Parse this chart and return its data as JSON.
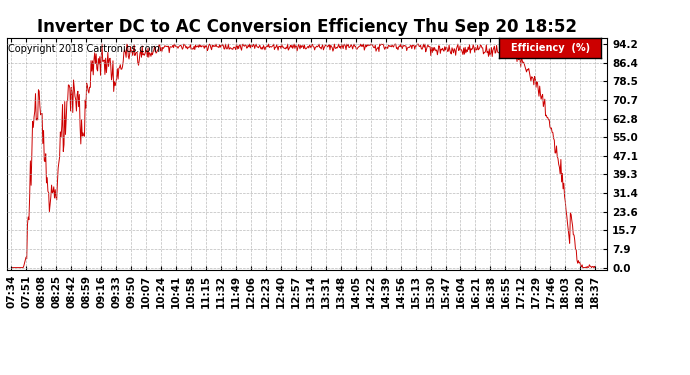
{
  "title": "Inverter DC to AC Conversion Efficiency Thu Sep 20 18:52",
  "copyright": "Copyright 2018 Cartronics.com",
  "legend_label": "Efficiency  (%)",
  "legend_bg": "#cc0000",
  "legend_text_color": "#ffffff",
  "line_color": "#cc0000",
  "bg_color": "#ffffff",
  "plot_bg_color": "#ffffff",
  "grid_color": "#aaaaaa",
  "ytick_labels": [
    "0.0",
    "7.9",
    "15.7",
    "23.6",
    "31.4",
    "39.3",
    "47.1",
    "55.0",
    "62.8",
    "70.7",
    "78.5",
    "86.4",
    "94.2"
  ],
  "ytick_values": [
    0.0,
    7.9,
    15.7,
    23.6,
    31.4,
    39.3,
    47.1,
    55.0,
    62.8,
    70.7,
    78.5,
    86.4,
    94.2
  ],
  "xtick_labels": [
    "07:34",
    "07:51",
    "08:08",
    "08:25",
    "08:42",
    "08:59",
    "09:16",
    "09:33",
    "09:50",
    "10:07",
    "10:24",
    "10:41",
    "10:58",
    "11:15",
    "11:32",
    "11:49",
    "12:06",
    "12:23",
    "12:40",
    "12:57",
    "13:14",
    "13:31",
    "13:48",
    "14:05",
    "14:22",
    "14:39",
    "14:56",
    "15:13",
    "15:30",
    "15:47",
    "16:04",
    "16:21",
    "16:38",
    "16:55",
    "17:12",
    "17:29",
    "17:46",
    "18:03",
    "18:20",
    "18:37"
  ],
  "title_fontsize": 12,
  "copyright_fontsize": 7,
  "axis_fontsize": 7.5,
  "ymax": 94.2,
  "ymin": 0.0
}
